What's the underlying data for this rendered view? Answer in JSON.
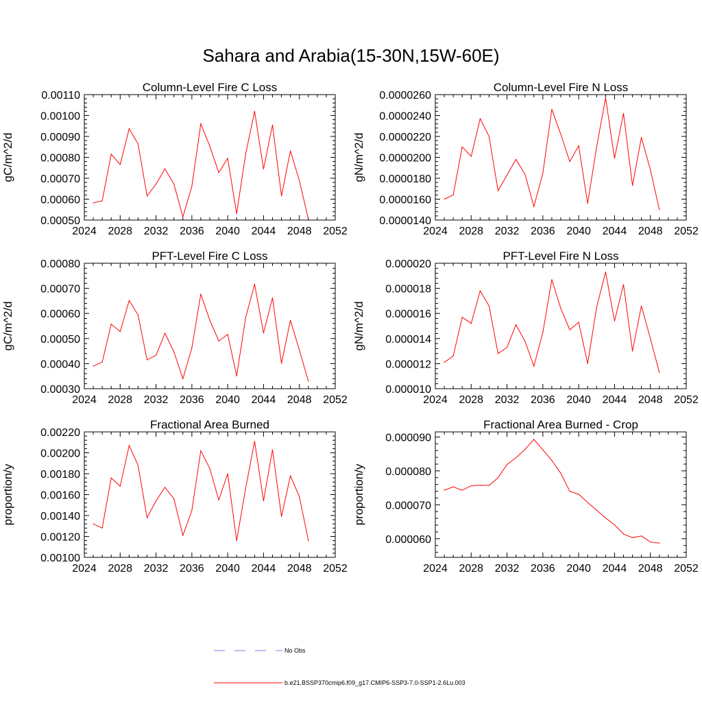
{
  "title": "Sahara and Arabia(15-30N,15W-60E)",
  "colors": {
    "series": "#ff0000",
    "no_obs": "#7b7bdc",
    "axis": "#000000"
  },
  "legend": [
    {
      "label": "No Obs",
      "style": "dashed",
      "color": "#7b7bdc"
    },
    {
      "label": "b.e21.BSSP370cmip6.f09_g17.CMIP6-SSP3-7.0-SSP1-2.6Lu.003",
      "style": "solid",
      "color": "#ff0000"
    }
  ],
  "chart_data": [
    {
      "type": "line",
      "title": "Column-Level Fire C Loss",
      "ylabel": "gC/m^2/d",
      "xlim": [
        2024,
        2052
      ],
      "ylim": [
        0.0005,
        0.0011
      ],
      "xticks": [
        2024,
        2028,
        2032,
        2036,
        2040,
        2044,
        2048,
        2052
      ],
      "yticks": [
        "0.00050",
        "0.00060",
        "0.00070",
        "0.00080",
        "0.00090",
        "0.00100",
        "0.00110"
      ],
      "x": [
        2025,
        2026,
        2027,
        2028,
        2029,
        2030,
        2031,
        2032,
        2033,
        2034,
        2035,
        2036,
        2037,
        2038,
        2039,
        2040,
        2041,
        2042,
        2043,
        2044,
        2045,
        2046,
        2047,
        2048,
        2049
      ],
      "series": [
        {
          "values": [
            0.000582,
            0.000592,
            0.000815,
            0.000766,
            0.000937,
            0.000864,
            0.000615,
            0.000672,
            0.000745,
            0.000672,
            0.000515,
            0.000662,
            0.000961,
            0.000853,
            0.000727,
            0.000795,
            0.000531,
            0.000815,
            0.00102,
            0.000744,
            0.000955,
            0.000615,
            0.000831,
            0.000688,
            0.000505
          ]
        }
      ]
    },
    {
      "type": "line",
      "title": "Column-Level Fire N Loss",
      "ylabel": "gN/m^2/d",
      "xlim": [
        2024,
        2052
      ],
      "ylim": [
        1.4e-05,
        2.6e-05
      ],
      "xticks": [
        2024,
        2028,
        2032,
        2036,
        2040,
        2044,
        2048,
        2052
      ],
      "yticks": [
        "0.0000140",
        "0.0000160",
        "0.0000180",
        "0.0000200",
        "0.0000220",
        "0.0000240",
        "0.0000260"
      ],
      "x": [
        2025,
        2026,
        2027,
        2028,
        2029,
        2030,
        2031,
        2032,
        2033,
        2034,
        2035,
        2036,
        2037,
        2038,
        2039,
        2040,
        2041,
        2042,
        2043,
        2044,
        2045,
        2046,
        2047,
        2048,
        2049
      ],
      "series": [
        {
          "values": [
            1.6e-05,
            1.64e-05,
            2.1e-05,
            2.01e-05,
            2.37e-05,
            2.2e-05,
            1.68e-05,
            1.83e-05,
            1.98e-05,
            1.84e-05,
            1.53e-05,
            1.85e-05,
            2.46e-05,
            2.22e-05,
            1.96e-05,
            2.11e-05,
            1.56e-05,
            2.1e-05,
            2.57e-05,
            1.99e-05,
            2.42e-05,
            1.73e-05,
            2.19e-05,
            1.88e-05,
            1.5e-05
          ]
        }
      ]
    },
    {
      "type": "line",
      "title": "PFT-Level Fire C Loss",
      "ylabel": "gC/m^2/d",
      "xlim": [
        2024,
        2052
      ],
      "ylim": [
        0.0003,
        0.0008
      ],
      "xticks": [
        2024,
        2028,
        2032,
        2036,
        2040,
        2044,
        2048,
        2052
      ],
      "yticks": [
        "0.00030",
        "0.00040",
        "0.00050",
        "0.00060",
        "0.00070",
        "0.00080"
      ],
      "x": [
        2025,
        2026,
        2027,
        2028,
        2029,
        2030,
        2031,
        2032,
        2033,
        2034,
        2035,
        2036,
        2037,
        2038,
        2039,
        2040,
        2041,
        2042,
        2043,
        2044,
        2045,
        2046,
        2047,
        2048,
        2049
      ],
      "series": [
        {
          "values": [
            0.00039,
            0.000406,
            0.000557,
            0.000528,
            0.000651,
            0.000594,
            0.000415,
            0.000433,
            0.000521,
            0.000447,
            0.00034,
            0.000463,
            0.000677,
            0.000573,
            0.00049,
            0.000517,
            0.000351,
            0.000583,
            0.000716,
            0.000522,
            0.000662,
            0.000401,
            0.000572,
            0.000454,
            0.00033
          ]
        }
      ]
    },
    {
      "type": "line",
      "title": "PFT-Level Fire N Loss",
      "ylabel": "gN/m^2/d",
      "xlim": [
        2024,
        2052
      ],
      "ylim": [
        1e-05,
        2e-05
      ],
      "xticks": [
        2024,
        2028,
        2032,
        2036,
        2040,
        2044,
        2048,
        2052
      ],
      "yticks": [
        "0.000010",
        "0.000012",
        "0.000014",
        "0.000016",
        "0.000018",
        "0.000020"
      ],
      "x": [
        2025,
        2026,
        2027,
        2028,
        2029,
        2030,
        2031,
        2032,
        2033,
        2034,
        2035,
        2036,
        2037,
        2038,
        2039,
        2040,
        2041,
        2042,
        2043,
        2044,
        2045,
        2046,
        2047,
        2048,
        2049
      ],
      "series": [
        {
          "values": [
            1.21e-05,
            1.26e-05,
            1.57e-05,
            1.52e-05,
            1.78e-05,
            1.66e-05,
            1.28e-05,
            1.33e-05,
            1.51e-05,
            1.38e-05,
            1.18e-05,
            1.45e-05,
            1.87e-05,
            1.64e-05,
            1.47e-05,
            1.53e-05,
            1.2e-05,
            1.65e-05,
            1.93e-05,
            1.54e-05,
            1.83e-05,
            1.3e-05,
            1.66e-05,
            1.4e-05,
            1.13e-05
          ]
        }
      ]
    },
    {
      "type": "line",
      "title": "Fractional Area Burned",
      "ylabel": "proportion/y",
      "xlim": [
        2024,
        2052
      ],
      "ylim": [
        0.001,
        0.0022
      ],
      "xticks": [
        2024,
        2028,
        2032,
        2036,
        2040,
        2044,
        2048,
        2052
      ],
      "yticks": [
        "0.00100",
        "0.00120",
        "0.00140",
        "0.00160",
        "0.00180",
        "0.00200",
        "0.00220"
      ],
      "x": [
        2025,
        2026,
        2027,
        2028,
        2029,
        2030,
        2031,
        2032,
        2033,
        2034,
        2035,
        2036,
        2037,
        2038,
        2039,
        2040,
        2041,
        2042,
        2043,
        2044,
        2045,
        2046,
        2047,
        2048,
        2049
      ],
      "series": [
        {
          "values": [
            0.00132,
            0.00128,
            0.00176,
            0.00168,
            0.00207,
            0.00188,
            0.00138,
            0.00154,
            0.00167,
            0.00156,
            0.00121,
            0.00145,
            0.00202,
            0.00185,
            0.00155,
            0.0018,
            0.00116,
            0.00166,
            0.00211,
            0.00154,
            0.00203,
            0.00139,
            0.00178,
            0.00158,
            0.00116
          ]
        }
      ]
    },
    {
      "type": "line",
      "title": "Fractional Area Burned - Crop",
      "ylabel": "proportion/y",
      "xlim": [
        2024,
        2052
      ],
      "ylim": [
        5.45e-05,
        9.15e-05
      ],
      "xticks": [
        2024,
        2028,
        2032,
        2036,
        2040,
        2044,
        2048,
        2052
      ],
      "yticks": [
        "0.000060",
        "0.000070",
        "0.000080",
        "0.000090"
      ],
      "ytick_values": [
        6e-05,
        7e-05,
        8e-05,
        9e-05
      ],
      "x": [
        2025,
        2026,
        2027,
        2028,
        2029,
        2030,
        2031,
        2032,
        2033,
        2034,
        2035,
        2036,
        2037,
        2038,
        2039,
        2040,
        2041,
        2042,
        2043,
        2044,
        2045,
        2046,
        2047,
        2048,
        2049
      ],
      "series": [
        {
          "values": [
            7.43e-05,
            7.53e-05,
            7.43e-05,
            7.56e-05,
            7.58e-05,
            7.57e-05,
            7.8e-05,
            8.19e-05,
            8.39e-05,
            8.63e-05,
            8.93e-05,
            8.62e-05,
            8.31e-05,
            7.93e-05,
            7.4e-05,
            7.31e-05,
            7.07e-05,
            6.84e-05,
            6.61e-05,
            6.41e-05,
            6.14e-05,
            6.03e-05,
            6.08e-05,
            5.9e-05,
            5.87e-05
          ]
        }
      ]
    }
  ]
}
